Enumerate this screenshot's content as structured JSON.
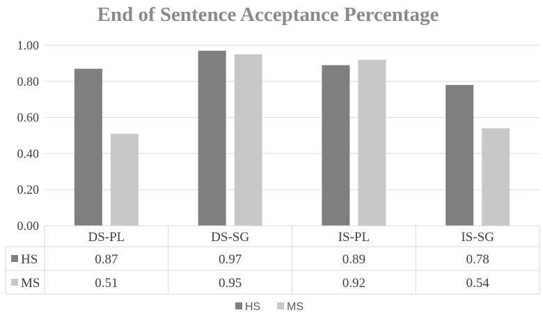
{
  "chart_data": {
    "type": "bar",
    "title": "End of Sentence Acceptance Percentage",
    "categories": [
      "DS-PL",
      "DS-SG",
      "IS-PL",
      "IS-SG"
    ],
    "series": [
      {
        "name": "HS",
        "values": [
          0.87,
          0.97,
          0.89,
          0.78
        ],
        "color": "#7f7f7f"
      },
      {
        "name": "MS",
        "values": [
          0.51,
          0.95,
          0.92,
          0.54
        ],
        "color": "#c8c8c8"
      }
    ],
    "value_labels": {
      "HS": [
        "0.87",
        "0.97",
        "0.89",
        "0.78"
      ],
      "MS": [
        "0.51",
        "0.95",
        "0.92",
        "0.54"
      ]
    },
    "yticks": [
      "0.00",
      "0.20",
      "0.40",
      "0.60",
      "0.80",
      "1.00"
    ],
    "ylim": [
      0,
      1
    ],
    "grid": true,
    "legend": [
      "HS",
      "MS"
    ],
    "legend_position": "bottom",
    "data_table": true
  }
}
